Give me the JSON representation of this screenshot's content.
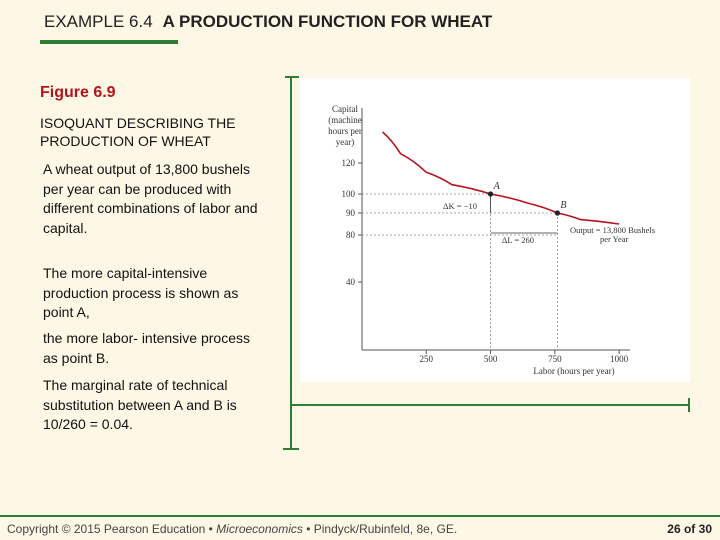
{
  "header": {
    "example": "EXAMPLE 6.4",
    "title": "A PRODUCTION FUNCTION FOR WHEAT"
  },
  "figure": {
    "number": "Figure 6.9",
    "subtitle": "ISOQUANT DESCRIBING THE PRODUCTION OF WHEAT"
  },
  "paragraphs": [
    "A wheat output of 13,800 bushels per year can be produced with different combinations of labor and capital.",
    "The more capital-intensive production process is shown as point A,",
    "the more labor- intensive process as point B.",
    "The marginal rate of technical substitution between A and B is 10/260 = 0.04."
  ],
  "footer": {
    "prefix": "Copyright © 2015 Pearson Education • ",
    "book": "Microeconomics",
    "suffix": " • Pindyck/Rubinfeld, 8e, GE.",
    "page": "26 of 30"
  },
  "chart_data": {
    "type": "line",
    "ylabel_lines": [
      "Capital",
      "(machine",
      "hours per",
      "year)"
    ],
    "xlabel": "Labor (hours per year)",
    "x_ticks": [
      250,
      500,
      750,
      1000
    ],
    "y_ticks": [
      40,
      80,
      90,
      100,
      120
    ],
    "curve": [
      [
        80,
        140
      ],
      [
        150,
        126
      ],
      [
        250,
        114
      ],
      [
        350,
        106
      ],
      [
        500,
        100
      ],
      [
        650,
        95
      ],
      [
        760,
        90
      ],
      [
        850,
        87
      ],
      [
        1000,
        85
      ]
    ],
    "points": [
      {
        "label": "A",
        "x": 500,
        "y": 100
      },
      {
        "label": "B",
        "x": 760,
        "y": 90
      }
    ],
    "annotations": {
      "delta_k": "ΔK = −10",
      "delta_l": "ΔL = 260",
      "output_line1": "Output = 13,800 Bushels",
      "output_line2": "per Year"
    }
  }
}
